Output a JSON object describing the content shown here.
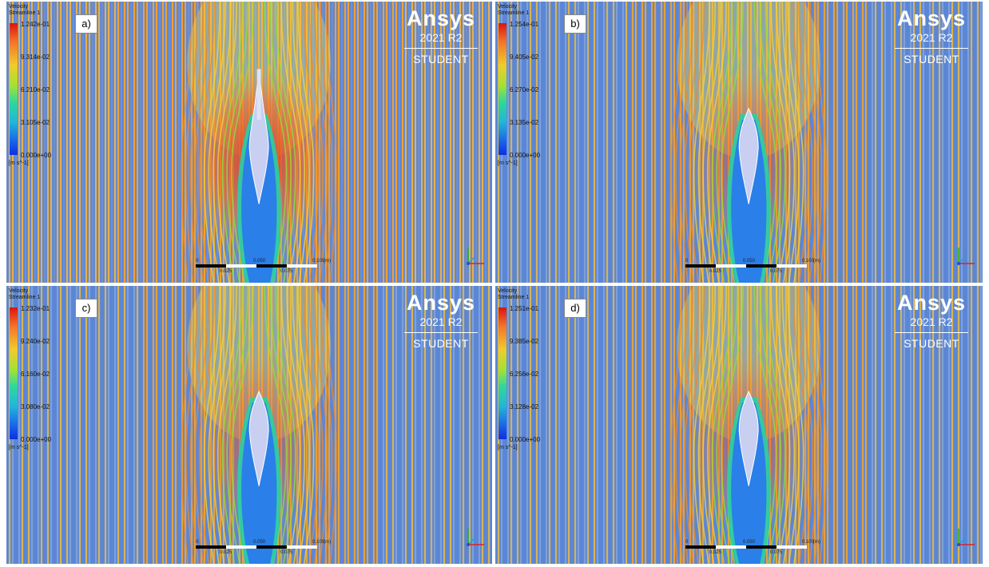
{
  "panels": [
    {
      "label": "a)",
      "legend": {
        "title": "Velocity",
        "subtitle": "Streamline 1",
        "ticks": [
          "1.242e-01",
          "9.314e-02",
          "6.210e-02",
          "3.105e-02",
          "0.000e+00"
        ],
        "unit": "[m s^-1]"
      },
      "scale": {
        "ticks": [
          "0",
          "0.050",
          "0.100",
          "(m)"
        ],
        "mid_ticks": [
          "0.025",
          "0.075"
        ]
      },
      "intensity": 1.0
    },
    {
      "label": "b)",
      "legend": {
        "title": "Velocity",
        "subtitle": "Streamline 1",
        "ticks": [
          "1.254e-01",
          "9.405e-02",
          "6.270e-02",
          "3.135e-02",
          "0.000e+00"
        ],
        "unit": "[m s^-1]"
      },
      "scale": {
        "ticks": [
          "0",
          "0.050",
          "0.100",
          "(m)"
        ],
        "mid_ticks": [
          "0.025",
          "0.075"
        ]
      },
      "intensity": 0.55
    },
    {
      "label": "c)",
      "legend": {
        "title": "Velocity",
        "subtitle": "Streamline 1",
        "ticks": [
          "1.232e-01",
          "9.240e-02",
          "6.160e-02",
          "3.080e-02",
          "0.000e+00"
        ],
        "unit": "[m s^-1]"
      },
      "scale": {
        "ticks": [
          "0",
          "0.050",
          "0.100",
          "(m)"
        ],
        "mid_ticks": [
          "0.025",
          "0.075"
        ]
      },
      "intensity": 0.55
    },
    {
      "label": "d)",
      "legend": {
        "title": "Velocity",
        "subtitle": "Streamline 1",
        "ticks": [
          "1.251e-01",
          "9.385e-02",
          "6.256e-02",
          "3.128e-02",
          "0.000e+00"
        ],
        "unit": "[m s^-1]"
      },
      "scale": {
        "ticks": [
          "0",
          "0.050",
          "0.100",
          "(m)"
        ],
        "mid_ticks": [
          "0.025",
          "0.075"
        ]
      },
      "intensity": 0.55
    }
  ],
  "brand": {
    "name": "Ansys",
    "version": "2021 R2",
    "edition": "STUDENT"
  },
  "colors": {
    "flow_far": "#e9a23a",
    "flow_blue": "#5b86d6",
    "fast": "#e0321c",
    "wake": "#2a7fe8",
    "body": "#c8cff0"
  }
}
